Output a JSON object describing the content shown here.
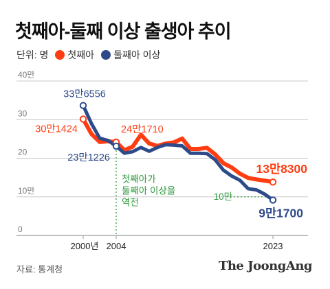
{
  "title": "첫째아-둘째 이상 출생아 추이",
  "legend": {
    "unit_label": "단위: 명",
    "series": [
      {
        "name": "첫째아",
        "color": "#ff3d12"
      },
      {
        "name": "둘째아 이상",
        "color": "#2d4a8a"
      }
    ]
  },
  "source": "자료: 통계청",
  "brand": "The JoongAng",
  "colors": {
    "first": "#ff3d12",
    "second": "#2d4a8a",
    "annotation": "#2e9a3c",
    "grid": "#c8c8c8"
  },
  "chart_data": {
    "type": "line",
    "title": "첫째아-둘째 이상 출생아 추이",
    "ylabel": "단위: 명",
    "ylim": [
      0,
      40
    ],
    "y_unit": "만",
    "yticks": [
      "40만",
      "30",
      "20",
      "10만",
      "0"
    ],
    "xticks": [
      "2000년",
      "2004",
      "2023"
    ],
    "x": [
      2000,
      2001,
      2002,
      2003,
      2004,
      2005,
      2006,
      2007,
      2008,
      2009,
      2010,
      2011,
      2012,
      2013,
      2014,
      2015,
      2016,
      2017,
      2018,
      2019,
      2020,
      2021,
      2022,
      2023
    ],
    "series": [
      {
        "name": "첫째아",
        "color": "#ff3d12",
        "values": [
          30.14,
          26.3,
          24.2,
          24.4,
          24.17,
          22.1,
          23.0,
          26.1,
          23.8,
          23.2,
          23.8,
          24.1,
          25.1,
          22.4,
          22.4,
          22.7,
          21.0,
          18.7,
          17.6,
          16.0,
          14.9,
          14.5,
          14.2,
          13.83
        ]
      },
      {
        "name": "둘째아 이상",
        "color": "#2d4a8a",
        "values": [
          33.66,
          29.0,
          25.2,
          24.6,
          23.12,
          21.3,
          21.7,
          22.8,
          21.8,
          22.8,
          23.5,
          23.4,
          23.2,
          21.3,
          21.3,
          21.2,
          19.6,
          16.9,
          15.4,
          14.3,
          12.1,
          11.8,
          10.7,
          9.17
        ]
      }
    ],
    "annotations": {
      "first_2000": "30만1424",
      "second_2000": "33만6556",
      "first_2004": "24만1710",
      "second_2004": "23만1226",
      "first_2023": "13만8300",
      "second_2023": "9만1700",
      "crossover_note": [
        "첫째아가",
        "둘째아 이상을",
        "역전"
      ],
      "ref_10man": "10만",
      "crossover_year": 2004,
      "ref_level": 10
    },
    "grid": true
  }
}
